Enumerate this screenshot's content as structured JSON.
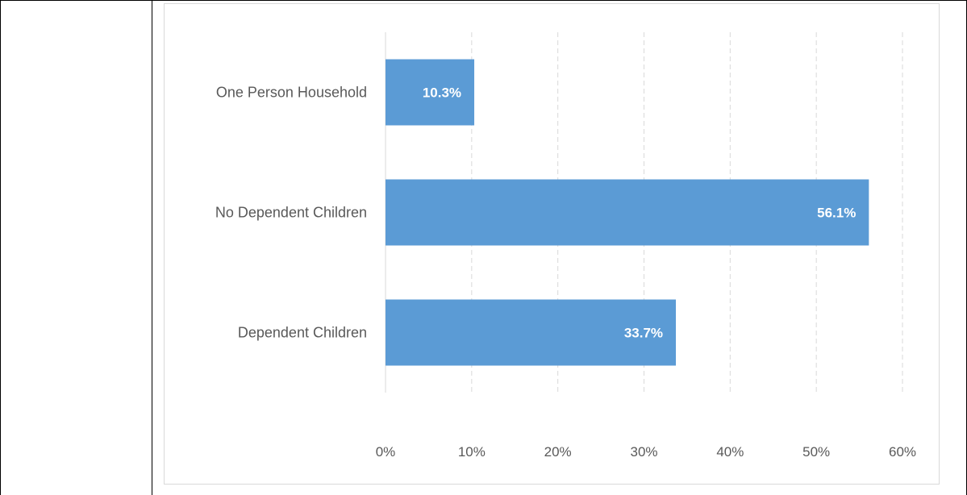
{
  "chart_data": {
    "type": "bar",
    "orientation": "horizontal",
    "categories": [
      "One Person Household",
      "No Dependent Children",
      "Dependent Children"
    ],
    "values": [
      10.3,
      56.1,
      33.7
    ],
    "data_labels": [
      "10.3%",
      "56.1%",
      "33.7%"
    ],
    "x_ticks": [
      0,
      10,
      20,
      30,
      40,
      50,
      60
    ],
    "x_tick_labels": [
      "0%",
      "10%",
      "20%",
      "30%",
      "40%",
      "50%",
      "60%"
    ],
    "xlim": [
      0,
      60
    ],
    "title": "",
    "xlabel": "",
    "ylabel": "",
    "grid": "vertical dashed",
    "legend": "none"
  },
  "colors": {
    "bar": "#5b9bd5",
    "gridline": "#d9d9d9",
    "axis_text": "#595959",
    "data_label": "#ffffff"
  }
}
